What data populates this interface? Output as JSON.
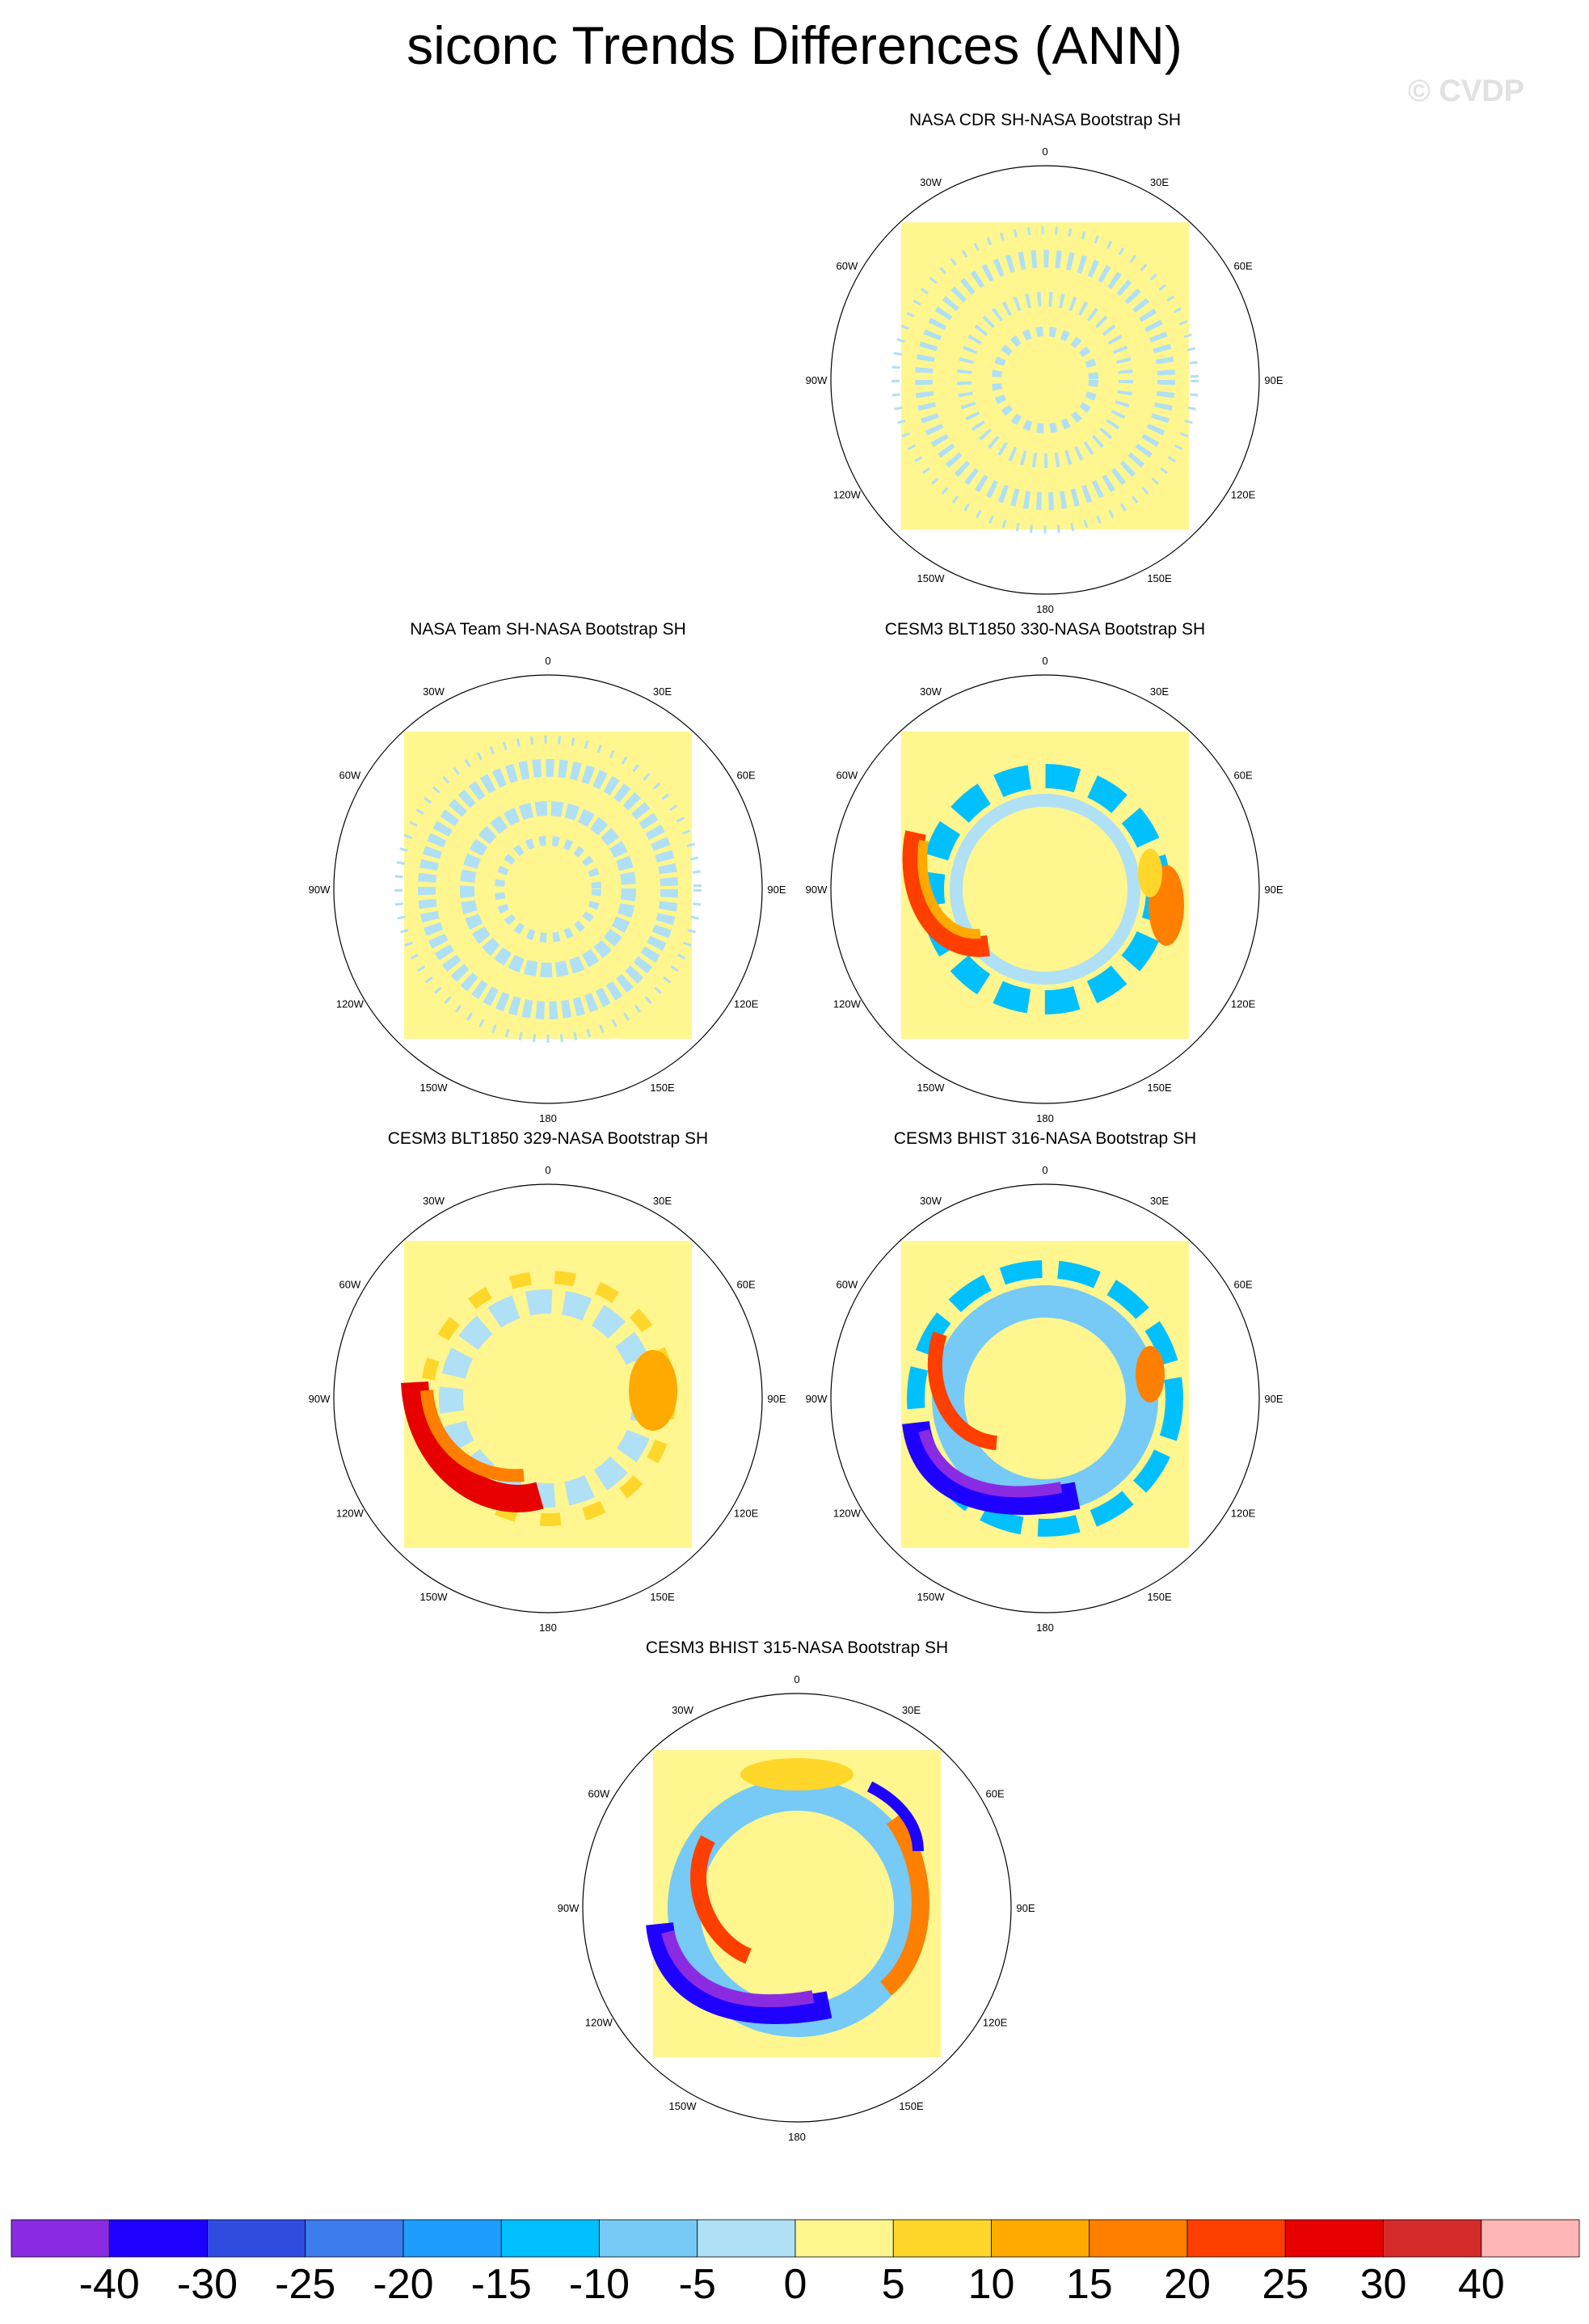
{
  "title": "siconc Trends Differences (ANN)",
  "watermark": "© CVDP",
  "longitude_labels": [
    "0",
    "30E",
    "60E",
    "90E",
    "120E",
    "150E",
    "180",
    "150W",
    "120W",
    "90W",
    "60W",
    "30W"
  ],
  "panels": [
    {
      "title": "NASA CDR SH-NASA Bootstrap SH"
    },
    {
      "title": "NASA Team SH-NASA Bootstrap SH"
    },
    {
      "title": "CESM3 BLT1850 330-NASA Bootstrap SH"
    },
    {
      "title": "CESM3 BLT1850 329-NASA Bootstrap SH"
    },
    {
      "title": "CESM3 BHIST 316-NASA Bootstrap SH"
    },
    {
      "title": "CESM3 BHIST 315-NASA Bootstrap SH"
    }
  ],
  "colorbar": {
    "colors": [
      "#8a2be2",
      "#1e00ff",
      "#2f4be0",
      "#3d7cec",
      "#1e9dff",
      "#00c0ff",
      "#76caf5",
      "#b0e0f5",
      "#fff68f",
      "#ffd62a",
      "#ffaa00",
      "#ff7f00",
      "#ff3f00",
      "#e60000",
      "#d42a2a",
      "#ffb6b6"
    ],
    "labels": [
      "-40",
      "-30",
      "-25",
      "-20",
      "-15",
      "-10",
      "-5",
      "0",
      "5",
      "10",
      "15",
      "20",
      "25",
      "30",
      "40"
    ]
  }
}
